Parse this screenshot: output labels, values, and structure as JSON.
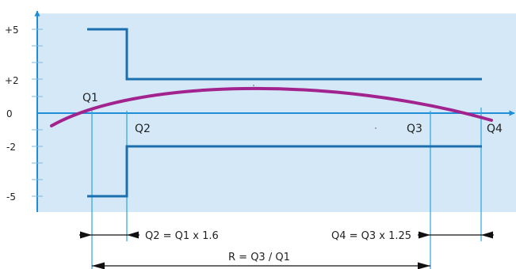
{
  "y_labels": {
    "plus5": "+5",
    "plus2": "+2",
    "zero": "0",
    "minus2": "-2",
    "minus5": "-5"
  },
  "markers": {
    "q1": "Q1",
    "q2": "Q2",
    "q3": "Q3",
    "q4": "Q4"
  },
  "formulas": {
    "q2": "Q2 = Q1 x 1.6",
    "q4": "Q4 = Q3 x 1.25",
    "r": "R = Q3 / Q1"
  },
  "colors": {
    "plot_background": "#d4e8f7",
    "axis": "#1e8fd6",
    "step_lines": "#1c6fae",
    "curve": "#a3238e",
    "guide_lines": "#2aa6dd",
    "arrows": "#111111"
  }
}
